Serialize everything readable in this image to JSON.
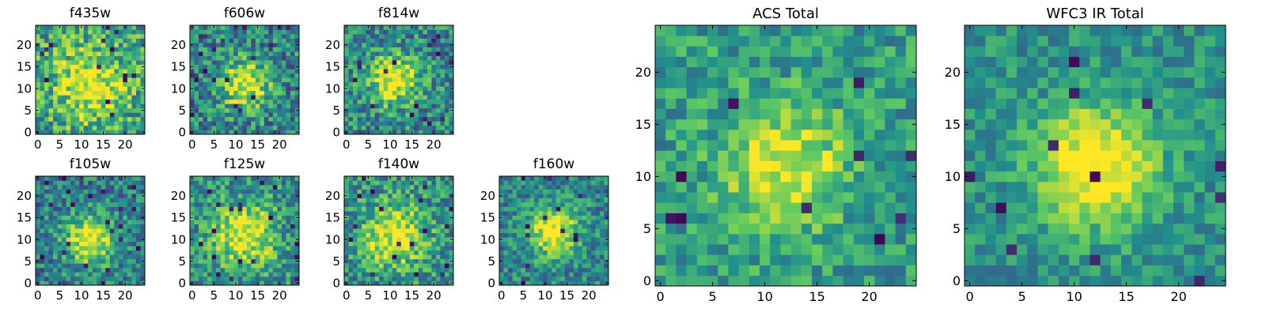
{
  "figure": {
    "colormap": [
      "#440154",
      "#3b528b",
      "#21918c",
      "#5ec962",
      "#fde725"
    ]
  },
  "chart_data": [
    {
      "id": "f435w",
      "type": "heatmap",
      "title": "f435w",
      "grid": 25,
      "xlim": [
        0,
        24
      ],
      "ylim": [
        0,
        24
      ],
      "xticks": [
        0,
        5,
        10,
        15,
        20
      ],
      "yticks": [
        0,
        5,
        10,
        15,
        20
      ],
      "center": [
        12,
        11
      ],
      "peak": 0.45,
      "sigma": 6,
      "noise": 0.3,
      "base": 0.55,
      "seed": 11,
      "dark_pixels": 14
    },
    {
      "id": "f606w",
      "type": "heatmap",
      "title": "f606w",
      "grid": 25,
      "xlim": [
        0,
        24
      ],
      "ylim": [
        0,
        24
      ],
      "xticks": [
        0,
        5,
        10,
        15,
        20
      ],
      "yticks": [
        0,
        5,
        10,
        15,
        20
      ],
      "center": [
        12,
        11
      ],
      "peak": 0.55,
      "sigma": 4,
      "noise": 0.28,
      "base": 0.45,
      "seed": 23,
      "dark_pixels": 18
    },
    {
      "id": "f814w",
      "type": "heatmap",
      "title": "f814w",
      "grid": 25,
      "xlim": [
        0,
        24
      ],
      "ylim": [
        0,
        24
      ],
      "xticks": [
        0,
        5,
        10,
        15,
        20
      ],
      "yticks": [
        0,
        5,
        10,
        15,
        20
      ],
      "center": [
        11,
        12
      ],
      "peak": 0.55,
      "sigma": 4,
      "noise": 0.27,
      "base": 0.47,
      "seed": 37,
      "dark_pixels": 16
    },
    {
      "id": "f105w",
      "type": "heatmap",
      "title": "f105w",
      "grid": 25,
      "xlim": [
        0,
        24
      ],
      "ylim": [
        0,
        24
      ],
      "xticks": [
        0,
        5,
        10,
        15,
        20
      ],
      "yticks": [
        0,
        5,
        10,
        15,
        20
      ],
      "center": [
        12,
        10
      ],
      "peak": 0.6,
      "sigma": 4,
      "noise": 0.24,
      "base": 0.42,
      "seed": 41,
      "dark_pixels": 22
    },
    {
      "id": "f125w",
      "type": "heatmap",
      "title": "f125w",
      "grid": 25,
      "xlim": [
        0,
        24
      ],
      "ylim": [
        0,
        24
      ],
      "xticks": [
        0,
        5,
        10,
        15,
        20
      ],
      "yticks": [
        0,
        5,
        10,
        15,
        20
      ],
      "center": [
        12,
        11
      ],
      "peak": 0.5,
      "sigma": 5,
      "noise": 0.26,
      "base": 0.5,
      "seed": 53,
      "dark_pixels": 20
    },
    {
      "id": "f140w",
      "type": "heatmap",
      "title": "f140w",
      "grid": 25,
      "xlim": [
        0,
        24
      ],
      "ylim": [
        0,
        24
      ],
      "xticks": [
        0,
        5,
        10,
        15,
        20
      ],
      "yticks": [
        0,
        5,
        10,
        15,
        20
      ],
      "center": [
        11,
        11
      ],
      "peak": 0.5,
      "sigma": 5,
      "noise": 0.26,
      "base": 0.5,
      "seed": 67,
      "dark_pixels": 18
    },
    {
      "id": "f160w",
      "type": "heatmap",
      "title": "f160w",
      "grid": 25,
      "xlim": [
        0,
        24
      ],
      "ylim": [
        0,
        24
      ],
      "xticks": [
        0,
        5,
        10,
        15,
        20
      ],
      "yticks": [
        0,
        5,
        10,
        15,
        20
      ],
      "center": [
        12,
        12
      ],
      "peak": 0.6,
      "sigma": 4,
      "noise": 0.22,
      "base": 0.45,
      "seed": 71,
      "dark_pixels": 12
    },
    {
      "id": "acs-total",
      "type": "heatmap",
      "title": "ACS Total",
      "grid": 25,
      "xlim": [
        0,
        24
      ],
      "ylim": [
        0,
        24
      ],
      "xticks": [
        0,
        5,
        10,
        15,
        20
      ],
      "yticks": [
        0,
        5,
        10,
        15,
        20
      ],
      "center": [
        12,
        11
      ],
      "peak": 0.45,
      "sigma": 4,
      "noise": 0.2,
      "base": 0.55,
      "seed": 83,
      "dark_pixels": 10
    },
    {
      "id": "wfc3-ir-total",
      "type": "heatmap",
      "title": "WFC3 IR Total",
      "grid": 25,
      "xlim": [
        0,
        24
      ],
      "ylim": [
        0,
        24
      ],
      "xticks": [
        0,
        5,
        10,
        15,
        20
      ],
      "yticks": [
        0,
        5,
        10,
        15,
        20
      ],
      "center": [
        12,
        11
      ],
      "peak": 0.6,
      "sigma": 4,
      "noise": 0.16,
      "base": 0.5,
      "seed": 97,
      "dark_pixels": 12
    }
  ]
}
